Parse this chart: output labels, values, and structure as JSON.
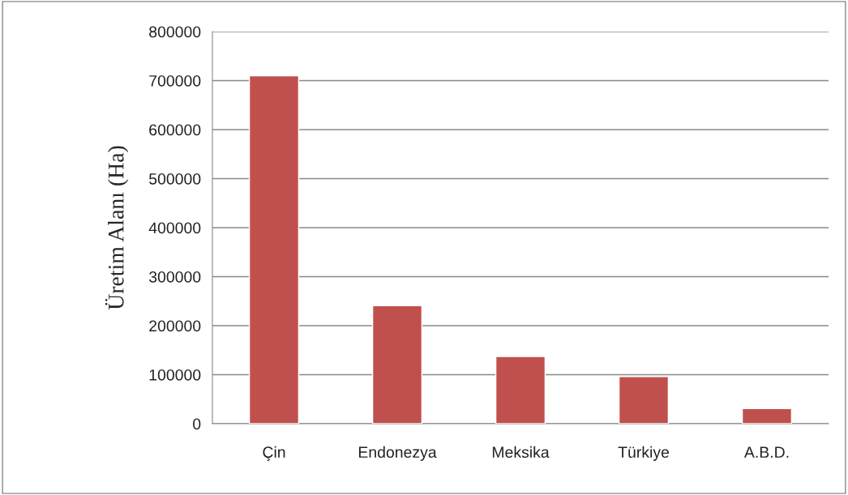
{
  "chart_data": {
    "type": "bar",
    "ylabel": "Üretim Alanı (Ha)",
    "categories": [
      "Çin",
      "Endonezya",
      "Meksika",
      "Türkiye",
      "A.B.D."
    ],
    "values": [
      710000,
      241000,
      137000,
      96000,
      31000
    ],
    "color": "#c0504d",
    "ylim": [
      0,
      800000
    ],
    "yticks": [
      0,
      100000,
      200000,
      300000,
      400000,
      500000,
      600000,
      700000,
      800000
    ],
    "grid": "y"
  }
}
